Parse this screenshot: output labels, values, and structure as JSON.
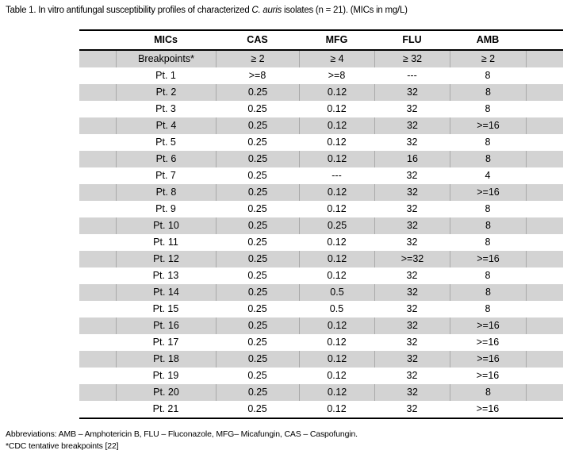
{
  "page": {
    "title_prefix": "Table 1. In vitro antifungal susceptibility profiles of characterized ",
    "title_italic": "C. auris",
    "title_suffix": " isolates (n = 21). (MICs in mg/L)"
  },
  "table": {
    "columns": [
      "MICs",
      "CAS",
      "MFG",
      "FLU",
      "AMB"
    ],
    "rows": [
      [
        "Breakpoints*",
        "≥ 2",
        "≥ 4",
        "≥ 32",
        "≥ 2"
      ],
      [
        "Pt. 1",
        ">=8",
        ">=8",
        "---",
        "8"
      ],
      [
        "Pt. 2",
        "0.25",
        "0.12",
        "32",
        "8"
      ],
      [
        "Pt. 3",
        "0.25",
        "0.12",
        "32",
        "8"
      ],
      [
        "Pt. 4",
        "0.25",
        "0.12",
        "32",
        ">=16"
      ],
      [
        "Pt. 5",
        "0.25",
        "0.12",
        "32",
        "8"
      ],
      [
        "Pt. 6",
        "0.25",
        "0.12",
        "16",
        "8"
      ],
      [
        "Pt. 7",
        "0.25",
        "---",
        "32",
        "4"
      ],
      [
        "Pt. 8",
        "0.25",
        "0.12",
        "32",
        ">=16"
      ],
      [
        "Pt. 9",
        "0.25",
        "0.12",
        "32",
        "8"
      ],
      [
        "Pt. 10",
        "0.25",
        "0.25",
        "32",
        "8"
      ],
      [
        "Pt. 11",
        "0.25",
        "0.12",
        "32",
        "8"
      ],
      [
        "Pt. 12",
        "0.25",
        "0.12",
        ">=32",
        ">=16"
      ],
      [
        "Pt. 13",
        "0.25",
        "0.12",
        "32",
        "8"
      ],
      [
        "Pt. 14",
        "0.25",
        "0.5",
        "32",
        "8"
      ],
      [
        "Pt. 15",
        "0.25",
        "0.5",
        "32",
        "8"
      ],
      [
        "Pt. 16",
        "0.25",
        "0.12",
        "32",
        ">=16"
      ],
      [
        "Pt. 17",
        "0.25",
        "0.12",
        "32",
        ">=16"
      ],
      [
        "Pt. 18",
        "0.25",
        "0.12",
        "32",
        ">=16"
      ],
      [
        "Pt. 19",
        "0.25",
        "0.12",
        "32",
        ">=16"
      ],
      [
        "Pt. 20",
        "0.25",
        "0.12",
        "32",
        "8"
      ],
      [
        "Pt. 21",
        "0.25",
        "0.12",
        "32",
        ">=16"
      ]
    ]
  },
  "footer": {
    "abbreviations": "Abbreviations: AMB – Amphotericin B, FLU – Fluconazole, MFG– Micafungin, CAS – Caspofungin.",
    "note": "*CDC tentative breakpoints [22]"
  },
  "colors": {
    "row_shade": "#d3d3d3",
    "grid_line": "#a9a9a9",
    "rule": "#000000",
    "text": "#000000",
    "background": "#ffffff"
  }
}
